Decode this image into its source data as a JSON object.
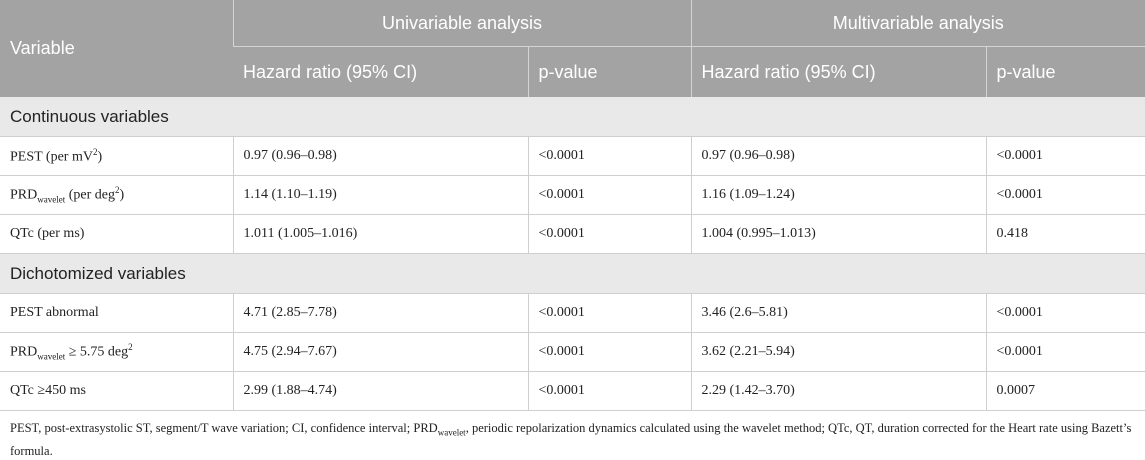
{
  "table": {
    "header": {
      "variable": "Variable",
      "groups": [
        "Univariable analysis",
        "Multivariable analysis"
      ],
      "columns": [
        "Hazard ratio (95% CI)",
        "p-value",
        "Hazard ratio (95% CI)",
        "p-value"
      ]
    },
    "sections": [
      {
        "title": "Continuous variables",
        "rows": [
          {
            "label": [
              {
                "text": "PEST (per mV"
              },
              {
                "sup": "2"
              },
              {
                "text": ")"
              }
            ],
            "cells": [
              "0.97 (0.96–0.98)",
              "<0.0001",
              "0.97 (0.96–0.98)",
              "<0.0001"
            ]
          },
          {
            "label": [
              {
                "text": "PRD"
              },
              {
                "sub": "wavelet"
              },
              {
                "text": " (per deg"
              },
              {
                "sup": "2"
              },
              {
                "text": ")"
              }
            ],
            "cells": [
              "1.14 (1.10–1.19)",
              "<0.0001",
              "1.16 (1.09–1.24)",
              "<0.0001"
            ]
          },
          {
            "label": [
              {
                "text": "QTc (per ms)"
              }
            ],
            "cells": [
              "1.011 (1.005–1.016)",
              "<0.0001",
              "1.004 (0.995–1.013)",
              "0.418"
            ]
          }
        ]
      },
      {
        "title": "Dichotomized variables",
        "rows": [
          {
            "label": [
              {
                "text": "PEST abnormal"
              }
            ],
            "cells": [
              "4.71 (2.85–7.78)",
              "<0.0001",
              "3.46 (2.6–5.81)",
              "<0.0001"
            ]
          },
          {
            "label": [
              {
                "text": "PRD"
              },
              {
                "sub": "wavelet"
              },
              {
                "text": " ≥ 5.75 deg"
              },
              {
                "sup": "2"
              }
            ],
            "cells": [
              "4.75 (2.94–7.67)",
              "<0.0001",
              "3.62 (2.21–5.94)",
              "<0.0001"
            ]
          },
          {
            "label": [
              {
                "text": "QTc ≥450 ms"
              }
            ],
            "cells": [
              "2.99 (1.88–4.74)",
              "<0.0001",
              "2.29 (1.42–3.70)",
              "0.0007"
            ]
          }
        ]
      }
    ]
  },
  "footnote": [
    {
      "text": "PEST, post-extrasystolic ST, segment/T wave variation; CI, confidence interval; PRD"
    },
    {
      "sub": "wavelet"
    },
    {
      "text": ", periodic repolarization dynamics calculated using the wavelet method; QTc, QT, duration corrected for the Heart rate using Bazett’s formula."
    }
  ]
}
